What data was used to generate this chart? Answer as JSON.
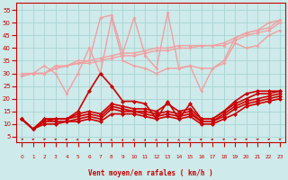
{
  "background_color": "#ceeaea",
  "grid_color": "#a8d4d4",
  "xlabel": "Vent moyen/en rafales ( km/h )",
  "ylim": [
    3,
    58
  ],
  "yticks": [
    5,
    10,
    15,
    20,
    25,
    30,
    35,
    40,
    45,
    50,
    55
  ],
  "xlim": [
    -0.5,
    23.5
  ],
  "series": [
    {
      "name": "light1_smooth",
      "color": "#f0a0a0",
      "linewidth": 1.0,
      "markersize": 2.0,
      "y": [
        29,
        30,
        30,
        32,
        33,
        35,
        35,
        36,
        37,
        38,
        38,
        39,
        40,
        40,
        41,
        41,
        41,
        41,
        42,
        44,
        46,
        47,
        48,
        51
      ]
    },
    {
      "name": "light2_smooth",
      "color": "#f0a0a0",
      "linewidth": 1.0,
      "markersize": 2.0,
      "y": [
        29,
        30,
        30,
        32,
        33,
        34,
        34,
        35,
        36,
        37,
        37,
        38,
        39,
        39,
        40,
        40,
        41,
        41,
        41,
        43,
        45,
        46,
        47,
        50
      ]
    },
    {
      "name": "light3_zigzag",
      "color": "#f0a0a0",
      "linewidth": 1.0,
      "markersize": 2.0,
      "y": [
        30,
        30,
        33,
        30,
        22,
        30,
        40,
        30,
        52,
        35,
        33,
        32,
        30,
        32,
        32,
        33,
        23,
        32,
        34,
        42,
        40,
        41,
        45,
        47
      ]
    },
    {
      "name": "light4_zigzag",
      "color": "#f0a0a0",
      "linewidth": 1.0,
      "markersize": 2.0,
      "y": [
        29,
        30,
        30,
        33,
        33,
        34,
        35,
        52,
        53,
        38,
        52,
        37,
        32,
        54,
        32,
        33,
        32,
        32,
        35,
        44,
        46,
        47,
        50,
        51
      ]
    },
    {
      "name": "dark1_zigzag_upper",
      "color": "#cc0000",
      "linewidth": 1.2,
      "markersize": 2.5,
      "y": [
        12,
        8,
        12,
        12,
        12,
        15,
        23,
        30,
        25,
        19,
        19,
        18,
        12,
        19,
        12,
        18,
        12,
        12,
        15,
        19,
        22,
        23,
        23,
        23
      ]
    },
    {
      "name": "dark2_zigzag_mid",
      "color": "#cc0000",
      "linewidth": 1.2,
      "markersize": 2.5,
      "y": [
        12,
        8,
        12,
        12,
        12,
        14,
        15,
        14,
        18,
        17,
        16,
        16,
        15,
        18,
        15,
        16,
        12,
        12,
        15,
        18,
        20,
        22,
        22,
        23
      ]
    },
    {
      "name": "dark3_smooth",
      "color": "#cc0000",
      "linewidth": 1.2,
      "markersize": 2.5,
      "y": [
        12,
        8,
        11,
        12,
        12,
        13,
        14,
        13,
        17,
        16,
        15,
        15,
        14,
        15,
        14,
        15,
        11,
        11,
        14,
        17,
        19,
        20,
        21,
        22
      ]
    },
    {
      "name": "dark4_smooth",
      "color": "#cc0000",
      "linewidth": 1.2,
      "markersize": 2.5,
      "y": [
        12,
        8,
        11,
        11,
        11,
        12,
        13,
        12,
        16,
        15,
        15,
        14,
        13,
        14,
        13,
        14,
        11,
        11,
        13,
        16,
        18,
        19,
        20,
        21
      ]
    },
    {
      "name": "dark5_lowest",
      "color": "#cc0000",
      "linewidth": 1.2,
      "markersize": 2.5,
      "y": [
        12,
        8,
        10,
        10,
        11,
        11,
        12,
        11,
        14,
        14,
        14,
        13,
        12,
        13,
        12,
        13,
        10,
        10,
        12,
        14,
        17,
        18,
        19,
        20
      ]
    }
  ],
  "arrow_angles": [
    80,
    45,
    45,
    45,
    30,
    20,
    15,
    10,
    5,
    5,
    5,
    5,
    5,
    5,
    5,
    20,
    30,
    35,
    40,
    45,
    45,
    45,
    45,
    45
  ]
}
